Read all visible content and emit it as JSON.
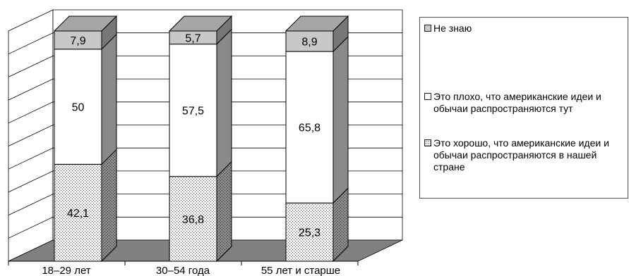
{
  "chart_data": {
    "type": "bar",
    "stacked": true,
    "three_d": true,
    "categories": [
      "18–29 лет",
      "30–54 года",
      "55 лет и старше"
    ],
    "series": [
      {
        "name": "Это хорошо, что американские идеи и обычаи распространяются в нашей стране",
        "values": [
          42.1,
          36.8,
          25.3
        ],
        "pattern": "dotted"
      },
      {
        "name": "Это плохо, что американские идеи и обычаи распространяются тут",
        "values": [
          50,
          57.5,
          65.8
        ],
        "pattern": "white"
      },
      {
        "name": "Не знаю",
        "values": [
          7.9,
          5.7,
          8.9
        ],
        "pattern": "light-gray"
      }
    ],
    "data_labels": [
      [
        "42,1",
        "36,8",
        "25,3"
      ],
      [
        "50",
        "57,5",
        "65,8"
      ],
      [
        "7,9",
        "5,7",
        "8,9"
      ]
    ],
    "ylim": [
      0,
      100
    ],
    "grid": true,
    "legend_position": "right",
    "colors": {
      "floor": "#808080",
      "wall_line": "#000000",
      "dotted_fill": "#f2f2f2",
      "dot": "#555555",
      "white": "#ffffff",
      "light_gray": "#c8c8c8",
      "side_shade": "#8a8a8a",
      "top_shade": "#a6a6a6"
    }
  },
  "legend": {
    "items": [
      {
        "label": "Не знаю",
        "pattern": "light-gray"
      },
      {
        "label": "Это плохо, что американские идеи и обычаи распространяются тут",
        "pattern": "white"
      },
      {
        "label": "Это хорошо, что американские идеи и обычаи распространяются в нашей стране",
        "pattern": "dotted"
      }
    ]
  }
}
